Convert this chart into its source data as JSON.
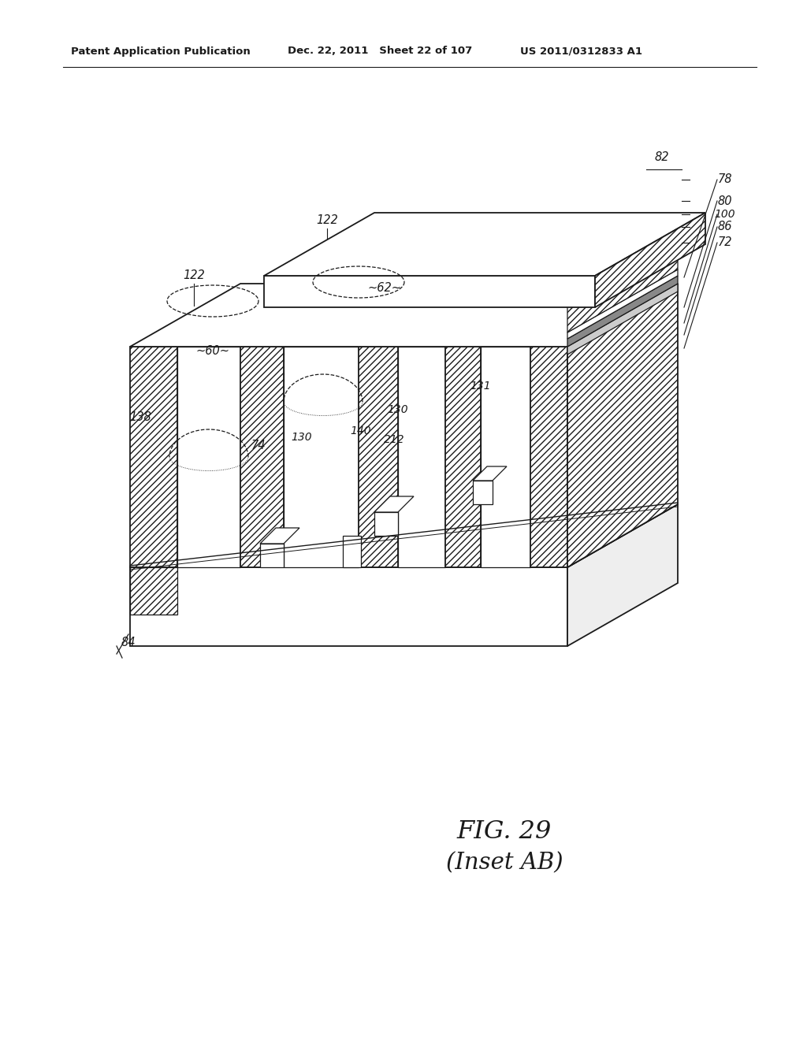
{
  "header_left": "Patent Application Publication",
  "header_mid": "Dec. 22, 2011   Sheet 22 of 107",
  "header_right": "US 2011/0312833 A1",
  "fig_label": "FIG. 29",
  "fig_sublabel": "(Inset AB)",
  "bg_color": "#ffffff",
  "line_color": "#1a1a1a"
}
